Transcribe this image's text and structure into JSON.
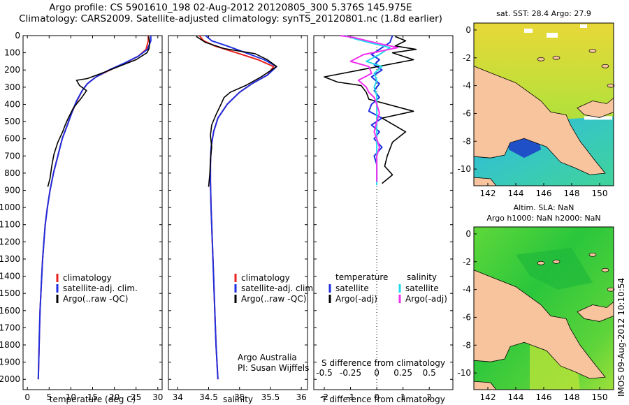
{
  "header": {
    "line1": "Argo profile: CS 5901610_198 02-Aug-2012 20120805_300 5.376S 145.975E",
    "line2": "Climatology: CARS2009. Satellite-adjusted climatology: synTS_20120801.nc (1.8d earlier)"
  },
  "stamp": "IMOS 09-Aug-2012 10:10:54",
  "colors": {
    "climatology": "#e8211d",
    "satellite": "#1f2fe0",
    "argo": "#000000",
    "satellite_salinity": "#22d8ee",
    "argo_salinity_adj": "#f02ff0",
    "land": "#f7c49d"
  },
  "chart_data": [
    {
      "type": "line",
      "xlabel": "temperature (deg C)",
      "ylabel": "",
      "xlim": [
        -1,
        31
      ],
      "ylim": [
        2060,
        0
      ],
      "xticks": [
        "0",
        "5",
        "10",
        "15",
        "20",
        "25",
        "30"
      ],
      "xtick_values": [
        0,
        5,
        10,
        15,
        20,
        25,
        30
      ],
      "yticks": [
        "0",
        "100",
        "200",
        "300",
        "400",
        "500",
        "600",
        "700",
        "800",
        "900",
        "1000",
        "1100",
        "1200",
        "1300",
        "1400",
        "1500",
        "1600",
        "1700",
        "1800",
        "1900",
        "2000"
      ],
      "legend": [
        "climatology",
        "satellite-adj. clim.",
        "Argo(..raw -QC)"
      ],
      "series": [
        {
          "name": "climatology",
          "points": [
            [
              27.8,
              0
            ],
            [
              27.8,
              30
            ],
            [
              27.3,
              80
            ],
            [
              25.5,
              120
            ],
            [
              22.5,
              160
            ],
            [
              19,
              200
            ],
            [
              15.8,
              240
            ],
            [
              13.8,
              280
            ],
            [
              12.6,
              320
            ],
            [
              11.4,
              380
            ],
            [
              10.2,
              450
            ],
            [
              9.2,
              520
            ],
            [
              8,
              600
            ],
            [
              7,
              700
            ],
            [
              6,
              800
            ],
            [
              5.2,
              900
            ],
            [
              4.6,
              1000
            ],
            [
              4.1,
              1100
            ],
            [
              3.8,
              1200
            ],
            [
              3.5,
              1300
            ],
            [
              3.3,
              1400
            ],
            [
              3.1,
              1500
            ],
            [
              2.9,
              1600
            ],
            [
              2.8,
              1700
            ],
            [
              2.7,
              1800
            ],
            [
              2.6,
              1900
            ],
            [
              2.5,
              2000
            ]
          ]
        },
        {
          "name": "satellite-adj. clim.",
          "points": [
            [
              28.4,
              0
            ],
            [
              28.4,
              30
            ],
            [
              27.6,
              80
            ],
            [
              25.5,
              120
            ],
            [
              22.3,
              160
            ],
            [
              18.8,
              200
            ],
            [
              15.8,
              240
            ],
            [
              13.8,
              280
            ],
            [
              12.6,
              320
            ],
            [
              11.3,
              380
            ],
            [
              10.2,
              450
            ],
            [
              9.2,
              520
            ],
            [
              8,
              600
            ],
            [
              7,
              700
            ],
            [
              6,
              800
            ],
            [
              5.2,
              900
            ],
            [
              4.6,
              1000
            ],
            [
              4.1,
              1100
            ],
            [
              3.8,
              1200
            ],
            [
              3.5,
              1300
            ],
            [
              3.3,
              1400
            ],
            [
              3.1,
              1500
            ],
            [
              2.9,
              1600
            ],
            [
              2.8,
              1700
            ],
            [
              2.7,
              1800
            ],
            [
              2.6,
              1900
            ],
            [
              2.5,
              2000
            ]
          ]
        },
        {
          "name": "Argo(..raw -QC)",
          "points": [
            [
              27.9,
              5
            ],
            [
              28.1,
              40
            ],
            [
              28,
              75
            ],
            [
              27.5,
              100
            ],
            [
              25,
              140
            ],
            [
              21,
              180
            ],
            [
              17,
              220
            ],
            [
              13.8,
              250
            ],
            [
              11.3,
              260
            ],
            [
              12,
              290
            ],
            [
              13.6,
              320
            ],
            [
              12.5,
              360
            ],
            [
              10.6,
              420
            ],
            [
              9.4,
              480
            ],
            [
              8.7,
              520
            ],
            [
              8.1,
              560
            ],
            [
              7,
              620
            ],
            [
              6.1,
              690
            ],
            [
              5.6,
              760
            ],
            [
              5.2,
              830
            ],
            [
              4.7,
              880
            ]
          ]
        }
      ]
    },
    {
      "type": "line",
      "xlabel": "salinity",
      "ylabel": "",
      "xlim": [
        33.85,
        36.1
      ],
      "ylim": [
        2060,
        0
      ],
      "xticks": [
        "34",
        "34.5",
        "35",
        "35.5",
        "36"
      ],
      "xtick_values": [
        34,
        34.5,
        35,
        35.5,
        36
      ],
      "legend": [
        "climatology",
        "satellite-adj. clim.",
        "Argo(..raw -QC)"
      ],
      "annotations": [
        "Argo Australia",
        "PI: Susan Wijffels"
      ],
      "series": [
        {
          "name": "climatology",
          "points": [
            [
              34.35,
              0
            ],
            [
              34.42,
              30
            ],
            [
              34.6,
              60
            ],
            [
              34.95,
              100
            ],
            [
              35.3,
              140
            ],
            [
              35.55,
              180
            ],
            [
              35.45,
              230
            ],
            [
              35.2,
              280
            ],
            [
              35.0,
              330
            ],
            [
              34.8,
              400
            ],
            [
              34.65,
              480
            ],
            [
              34.58,
              560
            ],
            [
              34.54,
              650
            ],
            [
              34.53,
              750
            ],
            [
              34.53,
              850
            ],
            [
              34.54,
              1000
            ],
            [
              34.56,
              1200
            ],
            [
              34.58,
              1400
            ],
            [
              34.6,
              1600
            ],
            [
              34.62,
              1800
            ],
            [
              34.65,
              2000
            ]
          ]
        },
        {
          "name": "satellite-adj. clim.",
          "points": [
            [
              34.45,
              0
            ],
            [
              34.55,
              30
            ],
            [
              34.8,
              60
            ],
            [
              35.1,
              100
            ],
            [
              35.4,
              140
            ],
            [
              35.6,
              180
            ],
            [
              35.45,
              230
            ],
            [
              35.2,
              280
            ],
            [
              35.0,
              330
            ],
            [
              34.8,
              400
            ],
            [
              34.65,
              480
            ],
            [
              34.58,
              560
            ],
            [
              34.54,
              650
            ],
            [
              34.53,
              750
            ],
            [
              34.53,
              850
            ],
            [
              34.54,
              1000
            ],
            [
              34.56,
              1200
            ],
            [
              34.58,
              1400
            ],
            [
              34.6,
              1600
            ],
            [
              34.62,
              1800
            ],
            [
              34.65,
              2000
            ]
          ]
        },
        {
          "name": "Argo(..raw -QC)",
          "points": [
            [
              34.3,
              5
            ],
            [
              34.45,
              40
            ],
            [
              34.75,
              75
            ],
            [
              35.25,
              105
            ],
            [
              35.45,
              140
            ],
            [
              35.6,
              180
            ],
            [
              35.35,
              240
            ],
            [
              35.1,
              290
            ],
            [
              34.85,
              330
            ],
            [
              34.75,
              360
            ],
            [
              34.7,
              400
            ],
            [
              34.62,
              460
            ],
            [
              34.55,
              520
            ],
            [
              34.53,
              580
            ],
            [
              34.55,
              650
            ],
            [
              34.53,
              720
            ],
            [
              34.52,
              800
            ],
            [
              34.5,
              880
            ]
          ]
        }
      ]
    },
    {
      "type": "line",
      "xlabel": "T difference from climatology",
      "xlabel_top": "S difference from climatology",
      "xlim": [
        -2.4,
        2.9
      ],
      "ylim": [
        2060,
        0
      ],
      "xticks": [
        "-2",
        "-1",
        "0",
        "1",
        "2"
      ],
      "xtick_values": [
        -2,
        -1,
        0,
        1,
        2
      ],
      "xticks_top": [
        "-0.5",
        "-0.25",
        "0",
        "0.25",
        "0.5"
      ],
      "xtick_top_values": [
        -2,
        -1,
        0,
        1,
        2
      ],
      "legend": [
        {
          "group": "temperature",
          "entries": [
            "satellite",
            "Argo(-adj)"
          ]
        },
        {
          "group": "salinity",
          "entries": [
            "satellite",
            "Argo(-adj)"
          ]
        }
      ],
      "series": [
        {
          "name": "temperature satellite",
          "points": [
            [
              0.6,
              0
            ],
            [
              0.5,
              40
            ],
            [
              0.1,
              80
            ],
            [
              -0.2,
              110
            ],
            [
              0.1,
              140
            ],
            [
              -0.1,
              170
            ],
            [
              0.2,
              200
            ],
            [
              -0.2,
              240
            ],
            [
              0.1,
              280
            ],
            [
              -0.1,
              320
            ],
            [
              0.1,
              360
            ],
            [
              -0.2,
              400
            ],
            [
              -0.3,
              440
            ],
            [
              0.2,
              480
            ],
            [
              -0.2,
              520
            ],
            [
              0.1,
              560
            ],
            [
              -0.1,
              600
            ],
            [
              0.2,
              650
            ],
            [
              -0.1,
              700
            ],
            [
              0,
              750
            ],
            [
              0,
              800
            ],
            [
              0,
              850
            ]
          ]
        },
        {
          "name": "temperature Argo(-adj)",
          "points": [
            [
              0.7,
              5
            ],
            [
              1.1,
              30
            ],
            [
              0.7,
              60
            ],
            [
              1.5,
              80
            ],
            [
              0.6,
              100
            ],
            [
              1.4,
              140
            ],
            [
              -2,
              240
            ],
            [
              -1.5,
              270
            ],
            [
              -0.6,
              290
            ],
            [
              -0.4,
              330
            ],
            [
              -0.3,
              370
            ],
            [
              1.4,
              440
            ],
            [
              0.2,
              480
            ],
            [
              1.1,
              560
            ],
            [
              0.6,
              620
            ],
            [
              0.4,
              700
            ],
            [
              0.3,
              760
            ],
            [
              0.6,
              810
            ],
            [
              0.2,
              860
            ]
          ]
        },
        {
          "name": "salinity satellite",
          "points": [
            [
              -1.2,
              0
            ],
            [
              -0.8,
              20
            ],
            [
              -0.3,
              40
            ],
            [
              0.5,
              70
            ],
            [
              0.1,
              110
            ],
            [
              -0.4,
              150
            ],
            [
              0.2,
              180
            ],
            [
              -0.1,
              220
            ],
            [
              0,
              260
            ],
            [
              -0.1,
              300
            ],
            [
              0,
              350
            ],
            [
              0,
              400
            ],
            [
              0,
              500
            ],
            [
              0,
              600
            ],
            [
              0,
              700
            ],
            [
              0,
              800
            ],
            [
              0,
              870
            ]
          ]
        },
        {
          "name": "salinity Argo(-adj)",
          "points": [
            [
              -1.4,
              0
            ],
            [
              -0.9,
              10
            ],
            [
              -0.1,
              40
            ],
            [
              0.8,
              70
            ],
            [
              -0.5,
              110
            ],
            [
              -1,
              150
            ],
            [
              -0.3,
              180
            ],
            [
              -0.2,
              220
            ],
            [
              -0.7,
              260
            ],
            [
              -0.4,
              300
            ],
            [
              -0.3,
              330
            ],
            [
              -0.1,
              360
            ],
            [
              0,
              400
            ],
            [
              0.1,
              450
            ],
            [
              0,
              500
            ],
            [
              -0.1,
              560
            ],
            [
              0,
              600
            ],
            [
              0.1,
              650
            ],
            [
              0,
              700
            ],
            [
              0,
              800
            ],
            [
              0,
              850
            ]
          ]
        }
      ]
    },
    {
      "type": "heatmap",
      "title": "sat. SST: 28.4  Argo: 27.9",
      "xlim": [
        141,
        151
      ],
      "ylim": [
        -11.2,
        0.5
      ],
      "xticks": [
        "142",
        "144",
        "146",
        "148",
        "150"
      ],
      "xtick_values": [
        142,
        144,
        146,
        148,
        150
      ],
      "yticks": [
        "0",
        "-2",
        "-4",
        "-6",
        "-8",
        "-10"
      ],
      "ytick_values": [
        0,
        -2,
        -4,
        -6,
        -8,
        -10
      ]
    },
    {
      "type": "heatmap",
      "title": "Altim. SLA: NaN",
      "subtitle": "Argo h1000: NaN h2000: NaN",
      "xlim": [
        141,
        151
      ],
      "ylim": [
        -11.2,
        0.5
      ],
      "xticks": [
        "142",
        "144",
        "146",
        "148",
        "150"
      ],
      "xtick_values": [
        142,
        144,
        146,
        148,
        150
      ],
      "yticks": [
        "0",
        "-2",
        "-4",
        "-6",
        "-8",
        "-10"
      ],
      "ytick_values": [
        0,
        -2,
        -4,
        -6,
        -8,
        -10
      ]
    }
  ]
}
